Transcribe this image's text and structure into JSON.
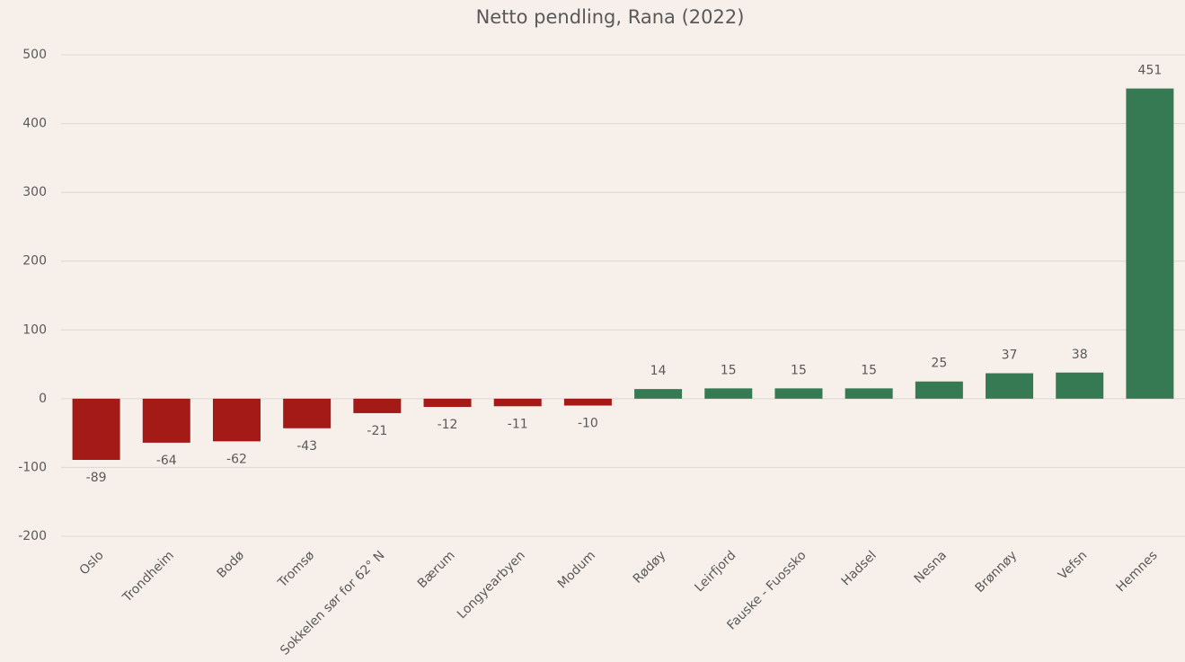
{
  "chart_data": {
    "type": "bar",
    "title": "Netto pendling, Rana (2022)",
    "categories": [
      "Oslo",
      "Trondheim",
      "Bodø",
      "Tromsø",
      "Sokkelen sør for 62° N",
      "Bærum",
      "Longyearbyen",
      "Modum",
      "Rødøy",
      "Leirfjord",
      "Fauske - Fuossko",
      "Hadsel",
      "Nesna",
      "Brønnøy",
      "Vefsn",
      "Hemnes"
    ],
    "values": [
      -89,
      -64,
      -62,
      -43,
      -21,
      -12,
      -11,
      -10,
      14,
      15,
      15,
      15,
      25,
      37,
      38,
      451
    ],
    "color_negative": "#a31a17",
    "color_positive": "#357a52",
    "ylim": [
      -200,
      500
    ],
    "yticks": [
      -200,
      -100,
      0,
      100,
      200,
      300,
      400,
      500
    ],
    "grid": true
  }
}
